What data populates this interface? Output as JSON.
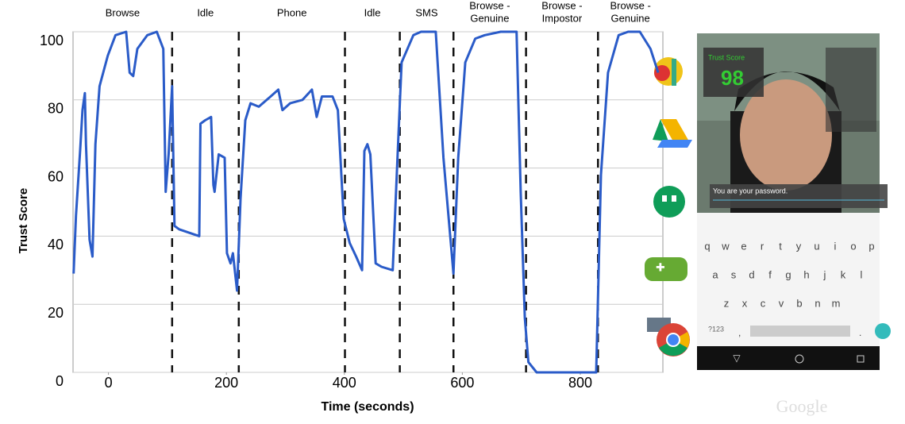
{
  "chart_data": {
    "type": "line",
    "ylabel": "Trust Score",
    "xlabel": "Time (seconds)",
    "x": [
      -59,
      -55,
      -48,
      -44,
      -40,
      -38,
      -32,
      -27,
      -22,
      -15,
      -1,
      12,
      30,
      36,
      42,
      49,
      66,
      82,
      93,
      97,
      102,
      108,
      112,
      120,
      154,
      156,
      164,
      174,
      178,
      180,
      187,
      197,
      201,
      207,
      211,
      218,
      224,
      232,
      241,
      255,
      275,
      288,
      295,
      308,
      329,
      345,
      353,
      362,
      380,
      389,
      399,
      409,
      420,
      430,
      434,
      439,
      444,
      453,
      463,
      482,
      490,
      497,
      517,
      530,
      555,
      568,
      585,
      593,
      605,
      622,
      638,
      665,
      692,
      699,
      706,
      712,
      726,
      827,
      835,
      847,
      865,
      881,
      901,
      919,
      932
    ],
    "values": [
      29,
      46,
      65,
      77,
      82,
      67,
      39,
      34,
      67,
      84,
      93,
      99,
      100,
      88,
      87,
      95,
      99,
      100,
      95,
      53,
      64,
      84,
      43,
      42,
      40,
      73,
      74,
      75,
      55,
      53,
      64,
      63,
      35,
      32,
      35,
      24,
      51,
      74,
      79,
      78,
      81,
      83,
      77,
      79,
      80,
      83,
      75,
      81,
      81,
      77,
      45,
      38,
      34,
      30,
      65,
      67,
      64,
      32,
      31,
      30,
      63,
      91,
      99,
      100,
      100,
      63,
      29,
      63,
      91,
      98,
      99,
      100,
      100,
      53,
      16,
      3,
      0,
      0,
      58,
      88,
      99,
      100,
      100,
      95,
      88
    ],
    "color": "#2a5bc8",
    "xlim": [
      -60,
      940
    ],
    "ylim": [
      0,
      100
    ],
    "xticks": [
      0,
      200,
      400,
      600,
      800
    ],
    "yticks": [
      0,
      20,
      40,
      60,
      80,
      100
    ],
    "grid": true,
    "phase_boundaries": [
      108,
      221,
      401,
      494,
      585,
      708,
      830
    ],
    "phases": [
      [
        "Browse"
      ],
      [
        "Idle"
      ],
      [
        "Phone"
      ],
      [
        "Idle"
      ],
      [
        "SMS"
      ],
      [
        "Browse -",
        "Genuine"
      ],
      [
        "Browse -",
        "Impostor"
      ],
      [
        "Browse -",
        "Genuine"
      ]
    ]
  },
  "phone": {
    "score_label": "Trust Score",
    "score": "98",
    "input_text": "You are your password.",
    "rows": [
      [
        "q",
        "w",
        "e",
        "r",
        "t",
        "y",
        "u",
        "i",
        "o",
        "p"
      ],
      [
        "a",
        "s",
        "d",
        "f",
        "g",
        "h",
        "j",
        "k",
        "l"
      ],
      [
        "z",
        "x",
        "c",
        "v",
        "b",
        "n",
        "m"
      ]
    ],
    "symbols_key": "?123",
    "comma": ",",
    "period": "."
  },
  "watermark": "Google"
}
